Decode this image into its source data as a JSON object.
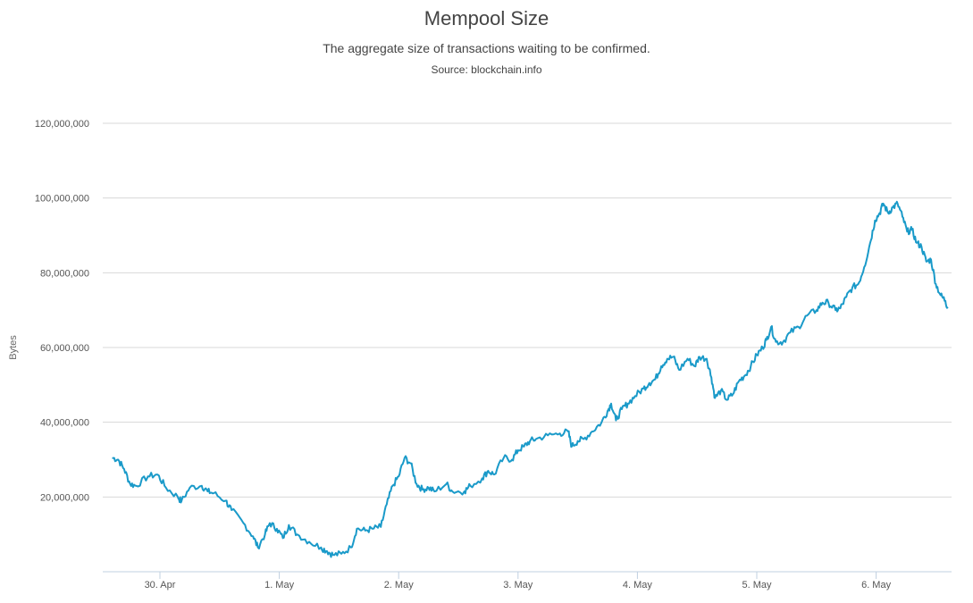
{
  "chart_data": {
    "type": "line",
    "title": "Mempool Size",
    "subtitle": "The aggregate size of transactions waiting to be confirmed.",
    "source": "Source: blockchain.info",
    "ylabel": "Bytes",
    "xlabel": "",
    "ylim": [
      0,
      120000000
    ],
    "xlim": [
      -0.4,
      6.6
    ],
    "y_ticks": [
      {
        "value": 20000000,
        "label": "20,000,000"
      },
      {
        "value": 40000000,
        "label": "40,000,000"
      },
      {
        "value": 60000000,
        "label": "60,000,000"
      },
      {
        "value": 80000000,
        "label": "80,000,000"
      },
      {
        "value": 100000000,
        "label": "100,000,000"
      },
      {
        "value": 120000000,
        "label": "120,000,000"
      }
    ],
    "x_ticks": [
      {
        "value": 0,
        "label": "30. Apr"
      },
      {
        "value": 1,
        "label": "1. May"
      },
      {
        "value": 2,
        "label": "2. May"
      },
      {
        "value": 3,
        "label": "3. May"
      },
      {
        "value": 4,
        "label": "4. May"
      },
      {
        "value": 5,
        "label": "5. May"
      },
      {
        "value": 6,
        "label": "6. May"
      }
    ],
    "grid": true,
    "series": [
      {
        "name": "Mempool Size",
        "color": "#1a9ac9",
        "points": [
          [
            -0.4,
            30500000
          ],
          [
            -0.35,
            30000000
          ],
          [
            -0.3,
            27500000
          ],
          [
            -0.25,
            23500000
          ],
          [
            -0.2,
            23000000
          ],
          [
            -0.1,
            25500000
          ],
          [
            -0.02,
            26000000
          ],
          [
            0.05,
            22500000
          ],
          [
            0.15,
            20000000
          ],
          [
            0.18,
            18800000
          ],
          [
            0.25,
            22500000
          ],
          [
            0.35,
            23000000
          ],
          [
            0.4,
            21500000
          ],
          [
            0.45,
            21000000
          ],
          [
            0.55,
            19000000
          ],
          [
            0.6,
            16500000
          ],
          [
            0.7,
            13000000
          ],
          [
            0.78,
            9500000
          ],
          [
            0.82,
            6500000
          ],
          [
            0.88,
            10000000
          ],
          [
            0.92,
            13000000
          ],
          [
            0.98,
            11500000
          ],
          [
            1.03,
            9000000
          ],
          [
            1.08,
            12500000
          ],
          [
            1.15,
            10000000
          ],
          [
            1.25,
            8000000
          ],
          [
            1.35,
            6500000
          ],
          [
            1.4,
            5500000
          ],
          [
            1.45,
            4500000
          ],
          [
            1.52,
            4800000
          ],
          [
            1.6,
            6500000
          ],
          [
            1.65,
            11500000
          ],
          [
            1.72,
            11000000
          ],
          [
            1.78,
            11500000
          ],
          [
            1.85,
            12000000
          ],
          [
            1.9,
            18000000
          ],
          [
            1.95,
            23000000
          ],
          [
            2.0,
            25500000
          ],
          [
            2.05,
            30500000
          ],
          [
            2.1,
            29000000
          ],
          [
            2.15,
            23500000
          ],
          [
            2.2,
            22000000
          ],
          [
            2.25,
            22500000
          ],
          [
            2.3,
            21500000
          ],
          [
            2.4,
            23500000
          ],
          [
            2.45,
            21500000
          ],
          [
            2.55,
            21500000
          ],
          [
            2.6,
            23000000
          ],
          [
            2.7,
            25000000
          ],
          [
            2.75,
            27000000
          ],
          [
            2.8,
            26000000
          ],
          [
            2.88,
            30500000
          ],
          [
            2.95,
            30000000
          ],
          [
            3.0,
            32500000
          ],
          [
            3.05,
            33500000
          ],
          [
            3.1,
            35000000
          ],
          [
            3.15,
            35500000
          ],
          [
            3.25,
            36500000
          ],
          [
            3.35,
            37000000
          ],
          [
            3.42,
            37500000
          ],
          [
            3.45,
            33500000
          ],
          [
            3.5,
            35000000
          ],
          [
            3.55,
            35500000
          ],
          [
            3.62,
            37500000
          ],
          [
            3.7,
            40000000
          ],
          [
            3.75,
            43000000
          ],
          [
            3.78,
            45000000
          ],
          [
            3.82,
            40500000
          ],
          [
            3.87,
            43500000
          ],
          [
            3.92,
            45000000
          ],
          [
            3.98,
            47000000
          ],
          [
            4.05,
            49000000
          ],
          [
            4.1,
            50500000
          ],
          [
            4.15,
            51500000
          ],
          [
            4.2,
            55000000
          ],
          [
            4.25,
            57000000
          ],
          [
            4.3,
            57500000
          ],
          [
            4.35,
            54000000
          ],
          [
            4.42,
            57000000
          ],
          [
            4.48,
            55000000
          ],
          [
            4.52,
            57500000
          ],
          [
            4.58,
            57000000
          ],
          [
            4.62,
            52000000
          ],
          [
            4.65,
            46500000
          ],
          [
            4.7,
            48500000
          ],
          [
            4.75,
            46000000
          ],
          [
            4.8,
            47500000
          ],
          [
            4.85,
            51000000
          ],
          [
            4.9,
            52500000
          ],
          [
            4.95,
            55000000
          ],
          [
            5.0,
            58000000
          ],
          [
            5.05,
            60000000
          ],
          [
            5.08,
            62000000
          ],
          [
            5.12,
            65500000
          ],
          [
            5.16,
            61500000
          ],
          [
            5.22,
            61500000
          ],
          [
            5.28,
            64000000
          ],
          [
            5.35,
            65500000
          ],
          [
            5.42,
            68500000
          ],
          [
            5.5,
            70000000
          ],
          [
            5.55,
            72000000
          ],
          [
            5.6,
            72000000
          ],
          [
            5.66,
            70000000
          ],
          [
            5.7,
            70500000
          ],
          [
            5.75,
            73500000
          ],
          [
            5.8,
            76000000
          ],
          [
            5.85,
            77000000
          ],
          [
            5.9,
            81500000
          ],
          [
            5.95,
            88000000
          ],
          [
            5.99,
            94000000
          ],
          [
            6.03,
            96000000
          ],
          [
            6.06,
            98500000
          ],
          [
            6.1,
            96000000
          ],
          [
            6.14,
            97500000
          ],
          [
            6.18,
            98500000
          ],
          [
            6.22,
            95000000
          ],
          [
            6.26,
            91000000
          ],
          [
            6.3,
            91500000
          ],
          [
            6.34,
            88000000
          ],
          [
            6.38,
            87000000
          ],
          [
            6.42,
            83000000
          ],
          [
            6.46,
            83500000
          ],
          [
            6.5,
            77000000
          ],
          [
            6.54,
            74000000
          ],
          [
            6.58,
            72500000
          ],
          [
            6.6,
            70500000
          ]
        ]
      }
    ]
  }
}
